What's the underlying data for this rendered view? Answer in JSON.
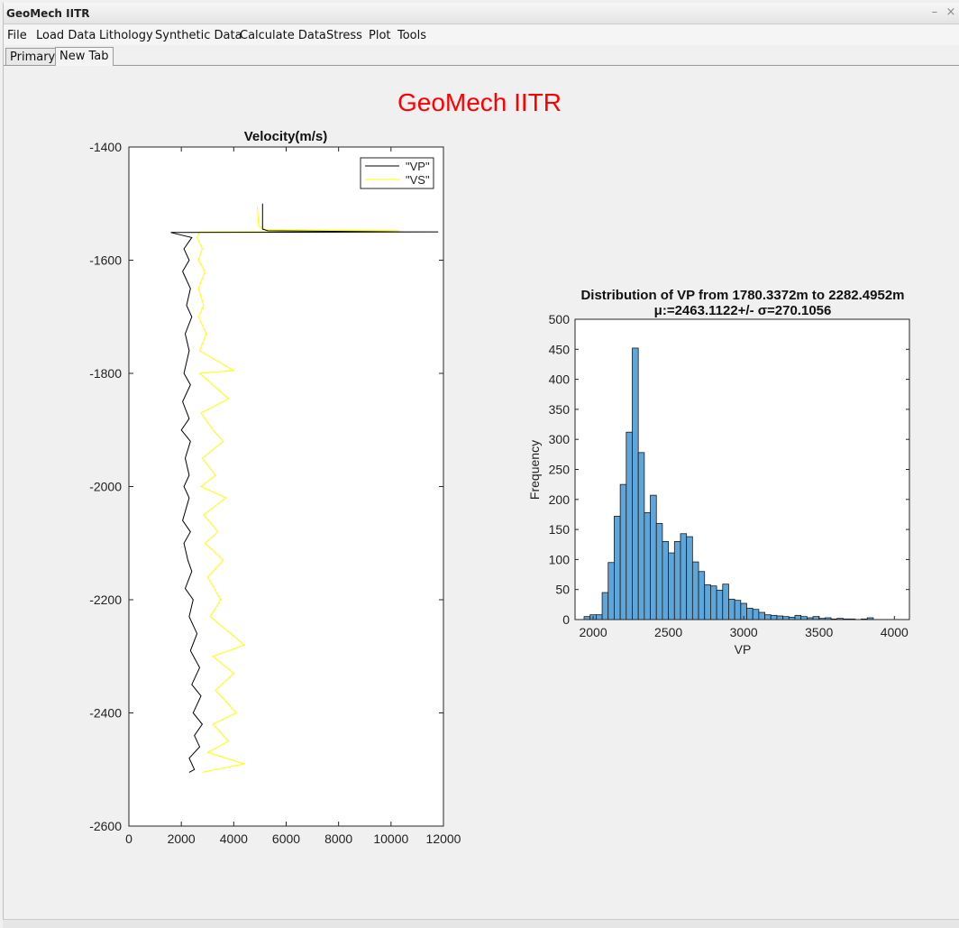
{
  "window": {
    "title": "GeoMech IITR",
    "minimize": "–",
    "close": "×"
  },
  "menu": [
    "File",
    "Load Data",
    "Lithology",
    "Synthetic Data",
    "Calculate Data",
    "Stress",
    "Plot",
    "Tools"
  ],
  "tabs": [
    {
      "label": "Primary",
      "active": false
    },
    {
      "label": "New Tab",
      "active": true
    }
  ],
  "app_title": "GeoMech IITR",
  "colors": {
    "app_title": "#ff0000",
    "vp_line": "#000000",
    "vs_line": "#ffff00",
    "hist_bar": "#5ea6d9"
  },
  "chart_data": [
    {
      "type": "line",
      "title": "Velocity(m/s)",
      "xlim": [
        0,
        12000
      ],
      "ylim": [
        -2600,
        -1400
      ],
      "x_ticks": [
        "0",
        "2000",
        "4000",
        "6000",
        "8000",
        "10000",
        "12000"
      ],
      "y_ticks": [
        "-1400",
        "-1600",
        "-1800",
        "-2000",
        "-2200",
        "-2400",
        "-2600"
      ],
      "legend": [
        "\"VP\"",
        "\"VS\""
      ],
      "legend_position": "top-right",
      "series": [
        {
          "name": "\"VP\"",
          "points": [
            [
              5100,
              -1500
            ],
            [
              5100,
              -1545
            ],
            [
              5300,
              -1548
            ],
            [
              10500,
              -1550
            ],
            [
              11800,
              -1550
            ],
            [
              1600,
              -1551
            ],
            [
              2400,
              -1560
            ],
            [
              2100,
              -1580
            ],
            [
              2300,
              -1600
            ],
            [
              2050,
              -1620
            ],
            [
              2350,
              -1650
            ],
            [
              2200,
              -1680
            ],
            [
              2400,
              -1700
            ],
            [
              2150,
              -1730
            ],
            [
              2300,
              -1760
            ],
            [
              2100,
              -1800
            ],
            [
              2350,
              -1820
            ],
            [
              2050,
              -1850
            ],
            [
              2300,
              -1880
            ],
            [
              2000,
              -1900
            ],
            [
              2350,
              -1920
            ],
            [
              2150,
              -1950
            ],
            [
              2300,
              -1980
            ],
            [
              2100,
              -2000
            ],
            [
              2300,
              -2020
            ],
            [
              2050,
              -2060
            ],
            [
              2350,
              -2080
            ],
            [
              2100,
              -2100
            ],
            [
              2250,
              -2130
            ],
            [
              2400,
              -2150
            ],
            [
              2150,
              -2180
            ],
            [
              2450,
              -2200
            ],
            [
              2300,
              -2230
            ],
            [
              2600,
              -2260
            ],
            [
              2350,
              -2290
            ],
            [
              2700,
              -2320
            ],
            [
              2400,
              -2350
            ],
            [
              2750,
              -2370
            ],
            [
              2450,
              -2400
            ],
            [
              2800,
              -2420
            ],
            [
              2500,
              -2440
            ],
            [
              2700,
              -2460
            ],
            [
              2300,
              -2480
            ],
            [
              2500,
              -2500
            ],
            [
              2300,
              -2505
            ]
          ]
        },
        {
          "name": "\"VS\"",
          "points": [
            [
              4900,
              -1505
            ],
            [
              4950,
              -1540
            ],
            [
              5200,
              -1546
            ],
            [
              10300,
              -1548
            ],
            [
              2700,
              -1550
            ],
            [
              2600,
              -1560
            ],
            [
              2800,
              -1580
            ],
            [
              2650,
              -1600
            ],
            [
              2900,
              -1620
            ],
            [
              2650,
              -1650
            ],
            [
              2850,
              -1680
            ],
            [
              2650,
              -1700
            ],
            [
              2950,
              -1730
            ],
            [
              2700,
              -1760
            ],
            [
              4000,
              -1795
            ],
            [
              2700,
              -1800
            ],
            [
              3800,
              -1845
            ],
            [
              2750,
              -1870
            ],
            [
              3200,
              -1900
            ],
            [
              3600,
              -1920
            ],
            [
              2800,
              -1950
            ],
            [
              3300,
              -1980
            ],
            [
              2750,
              -2000
            ],
            [
              3700,
              -2020
            ],
            [
              2850,
              -2050
            ],
            [
              3400,
              -2080
            ],
            [
              2900,
              -2100
            ],
            [
              3600,
              -2130
            ],
            [
              3000,
              -2160
            ],
            [
              3500,
              -2200
            ],
            [
              3100,
              -2230
            ],
            [
              4400,
              -2280
            ],
            [
              3200,
              -2300
            ],
            [
              4000,
              -2330
            ],
            [
              3300,
              -2360
            ],
            [
              4100,
              -2400
            ],
            [
              3200,
              -2420
            ],
            [
              3800,
              -2450
            ],
            [
              3000,
              -2470
            ],
            [
              4400,
              -2490
            ],
            [
              2800,
              -2505
            ]
          ]
        }
      ]
    },
    {
      "type": "bar",
      "title": "Distribution of VP from 1780.3372m to 2282.4952m",
      "subtitle": "μ:=2463.1122+/- σ=270.1056",
      "xlabel": "VP",
      "ylabel": "Frequency",
      "xlim": [
        1880,
        4100
      ],
      "ylim": [
        0,
        500
      ],
      "x_ticks": [
        "2000",
        "2500",
        "3000",
        "3500",
        "4000"
      ],
      "y_ticks": [
        "0",
        "50",
        "100",
        "150",
        "200",
        "250",
        "300",
        "350",
        "400",
        "450",
        "500"
      ],
      "bin_width": 40,
      "bin_start": 1940,
      "values": [
        5,
        8,
        8,
        45,
        95,
        172,
        225,
        312,
        452,
        278,
        178,
        207,
        160,
        130,
        111,
        130,
        143,
        138,
        96,
        80,
        58,
        56,
        49,
        59,
        34,
        32,
        27,
        19,
        17,
        12,
        8,
        7,
        6,
        5,
        4,
        7,
        5,
        3,
        5,
        2,
        3,
        1,
        2,
        1,
        1,
        0,
        1,
        3
      ]
    }
  ]
}
